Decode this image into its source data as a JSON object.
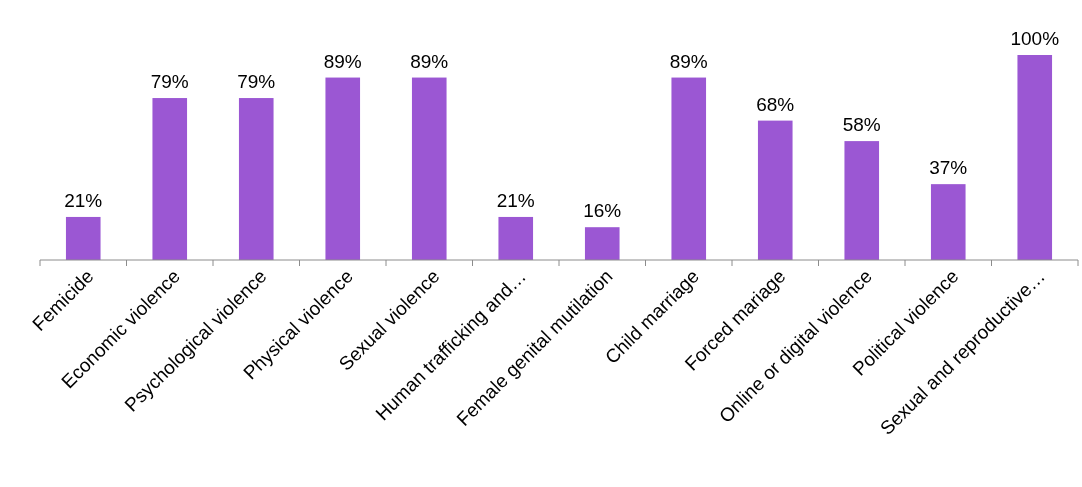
{
  "chart_data": {
    "type": "bar",
    "categories": [
      "Femicide",
      "Economic violence",
      "Psychological violence",
      "Physical violence",
      "Sexual violence",
      "Human trafficking and…",
      "Female genital mutilation",
      "Child marriage",
      "Forced mariage",
      "Online or digital violence",
      "Political violence",
      "Sexual and reproductive…"
    ],
    "values": [
      21,
      79,
      79,
      89,
      89,
      21,
      16,
      89,
      68,
      58,
      37,
      100
    ],
    "value_labels": [
      "21%",
      "79%",
      "79%",
      "89%",
      "89%",
      "21%",
      "16%",
      "89%",
      "68%",
      "58%",
      "37%",
      "100%"
    ],
    "color": "#9b57d3"
  }
}
